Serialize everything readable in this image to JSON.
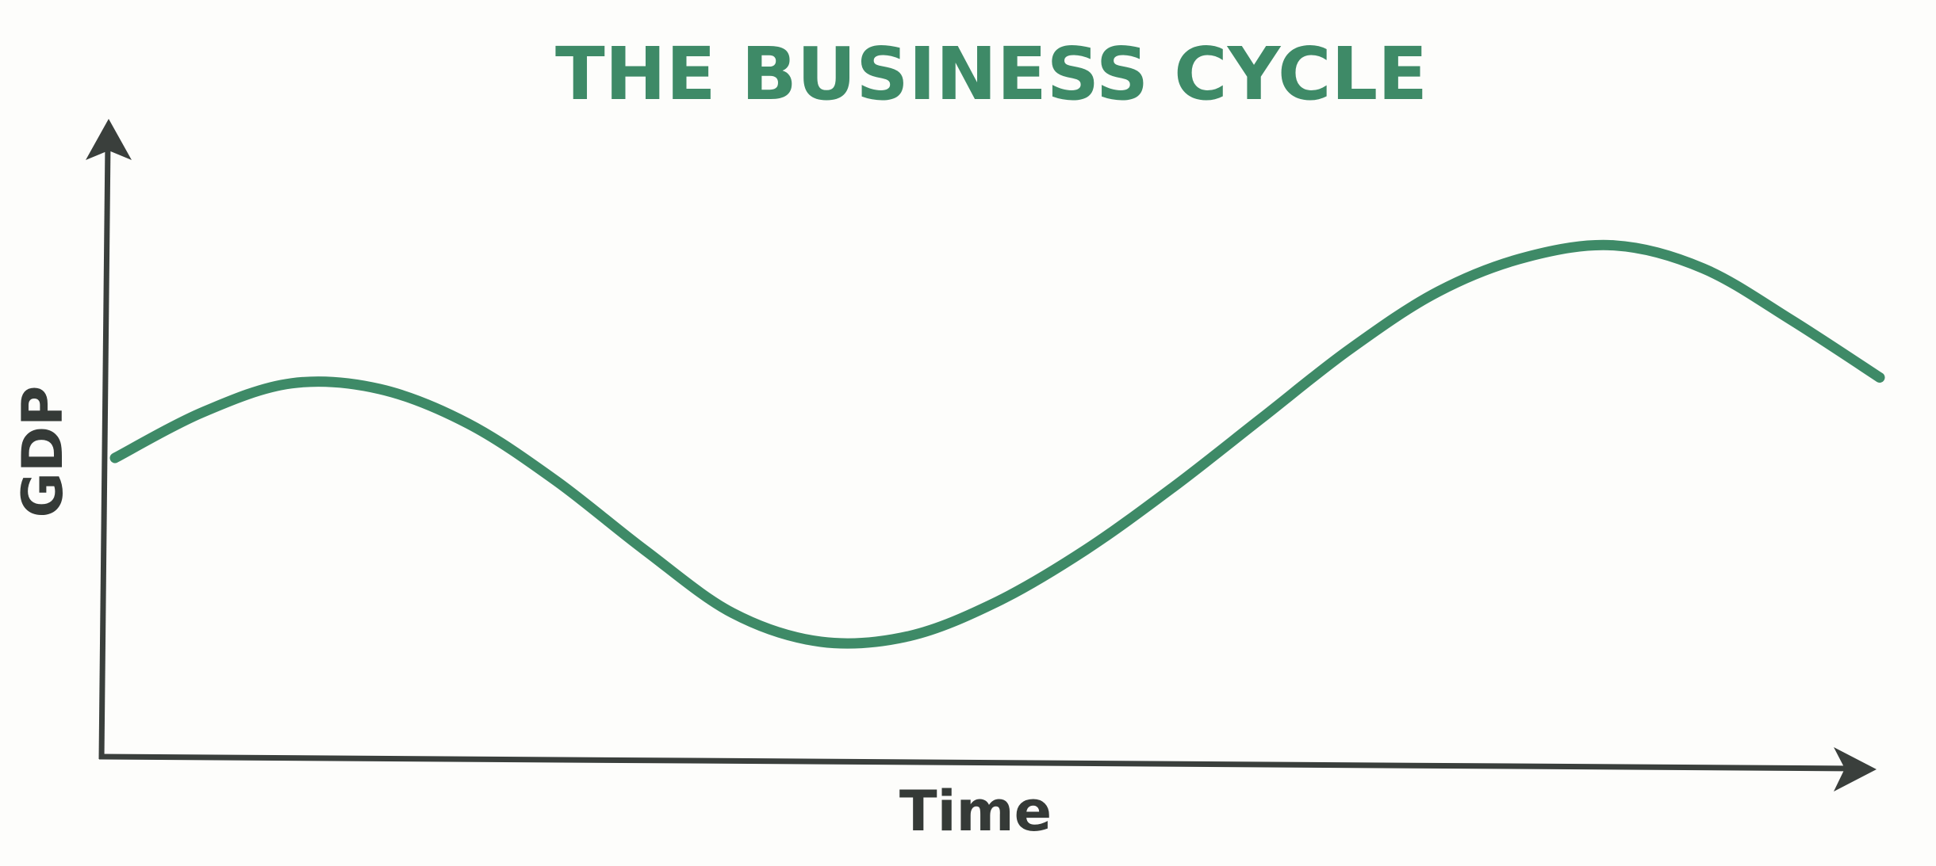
{
  "chart_data": {
    "type": "line",
    "title": "THE BUSINESS CYCLE",
    "xlabel": "Time",
    "ylabel": "GDP",
    "x": [
      0.0,
      0.05,
      0.1,
      0.15,
      0.2,
      0.25,
      0.3,
      0.35,
      0.4,
      0.45,
      0.5,
      0.55,
      0.6,
      0.65,
      0.7,
      0.75,
      0.8,
      0.85,
      0.9,
      0.95,
      1.0
    ],
    "series": [
      {
        "values": [
          0.52,
          0.6,
          0.65,
          0.64,
          0.58,
          0.48,
          0.36,
          0.25,
          0.2,
          0.21,
          0.27,
          0.36,
          0.47,
          0.59,
          0.71,
          0.81,
          0.87,
          0.89,
          0.85,
          0.76,
          0.66
        ]
      }
    ],
    "xlim": [
      0,
      1
    ],
    "ylim": [
      0,
      1
    ],
    "ticks": "none",
    "grid": false,
    "legend": "none",
    "colors": {
      "title": "#3e8a67",
      "line": "#3e8a67",
      "axis": "#3a3f3c",
      "label": "#353a37"
    }
  }
}
